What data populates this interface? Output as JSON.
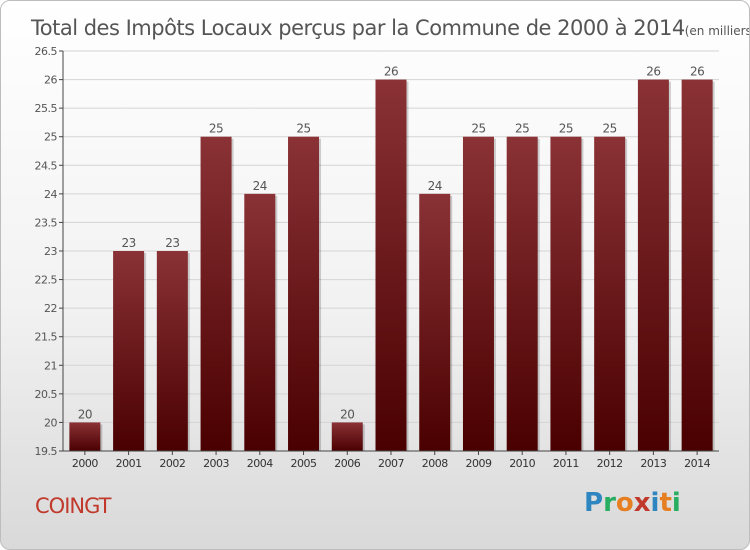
{
  "title": "Total des Impôts Locaux perçus par la Commune de 2000 à 2014",
  "title_unit": "(en milliers d'€)",
  "commune": "COINGT",
  "brand": {
    "letters": [
      "P",
      "r",
      "o",
      "x",
      "i",
      "t",
      "i"
    ],
    "colors": [
      "#2e86c1",
      "#27ae60",
      "#e67e22",
      "#c0392b",
      "#2e86c1",
      "#e67e22",
      "#27ae60"
    ]
  },
  "colors": {
    "bar_light": "#8a3236",
    "bar_dark": "#4a0000",
    "grid": "#d4d4d4",
    "axis": "#444444",
    "text": "#555555",
    "commune": "#c0392b"
  },
  "chart_data": {
    "type": "bar",
    "categories": [
      "2000",
      "2001",
      "2002",
      "2003",
      "2004",
      "2005",
      "2006",
      "2007",
      "2008",
      "2009",
      "2010",
      "2011",
      "2012",
      "2013",
      "2014"
    ],
    "values": [
      20,
      23,
      23,
      25,
      24,
      25,
      20,
      26,
      24,
      25,
      25,
      25,
      25,
      26,
      26
    ],
    "labels": [
      "20",
      "23",
      "23",
      "25",
      "24",
      "25",
      "20",
      "26",
      "24",
      "25",
      "25",
      "25",
      "25",
      "26",
      "26"
    ],
    "y_ticks": [
      19.5,
      20,
      20.5,
      21,
      21.5,
      22,
      22.5,
      23,
      23.5,
      24,
      24.5,
      25,
      25.5,
      26,
      26.5
    ],
    "y_tick_labels": [
      "19.5",
      "20",
      "20.5",
      "21",
      "21.5",
      "22",
      "22.5",
      "23",
      "23.5",
      "24",
      "24.5",
      "25",
      "25.5",
      "26",
      "26.5"
    ],
    "ylim": [
      19.5,
      26.5
    ],
    "grid": true,
    "xlabel": "",
    "ylabel": ""
  }
}
